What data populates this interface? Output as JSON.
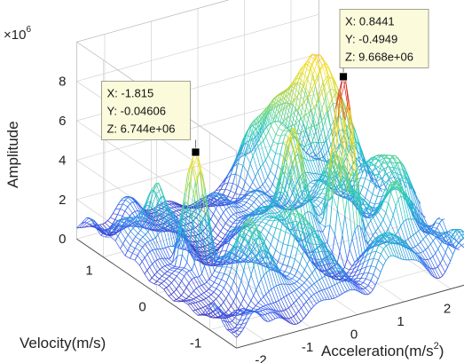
{
  "chart_data": {
    "type": "surface",
    "title": "",
    "zlabel": "Amplitude",
    "ylabel": "Velocity(m/s)",
    "xlabel_main": "Acceleration(m/s",
    "xlabel_sup": "2",
    "xlabel_close": ")",
    "z_multiplier_base": "×10",
    "z_multiplier_exp": "6",
    "z_ticks": [
      "0",
      "2",
      "4",
      "6",
      "8"
    ],
    "z_tick_values": [
      0,
      2,
      4,
      6,
      8
    ],
    "x_ticks": [
      "-2",
      "-1",
      "0",
      "1",
      "2"
    ],
    "x_tick_values": [
      -2,
      -1,
      0,
      1,
      2
    ],
    "y_ticks": [
      "1",
      "0",
      "-1"
    ],
    "y_tick_values": [
      1,
      0,
      -1
    ],
    "xlim": [
      -2.6,
      2.6
    ],
    "ylim": [
      -1.5,
      1.5
    ],
    "zlim": [
      0,
      10
    ],
    "grid": true,
    "colormap": "parula",
    "colormap_stops": [
      "#3e26a8",
      "#3a5ff0",
      "#2c96e0",
      "#22c3c8",
      "#5fd68e",
      "#c4d53a",
      "#f5e21a",
      "#f6b02b",
      "#e4321f",
      "#c21016"
    ],
    "datatips": [
      {
        "x_label": "X: 0.8441",
        "y_label": "Y: -0.4949",
        "z_label": "Z: 9.668e+06",
        "x": 0.8441,
        "y": -0.4949,
        "z": 9.668
      },
      {
        "x_label": "X: -1.815",
        "y_label": "Y: -0.04606",
        "z_label": "Z: 6.744e+06",
        "x": -1.815,
        "y": -0.04606,
        "z": 6.744
      }
    ]
  }
}
